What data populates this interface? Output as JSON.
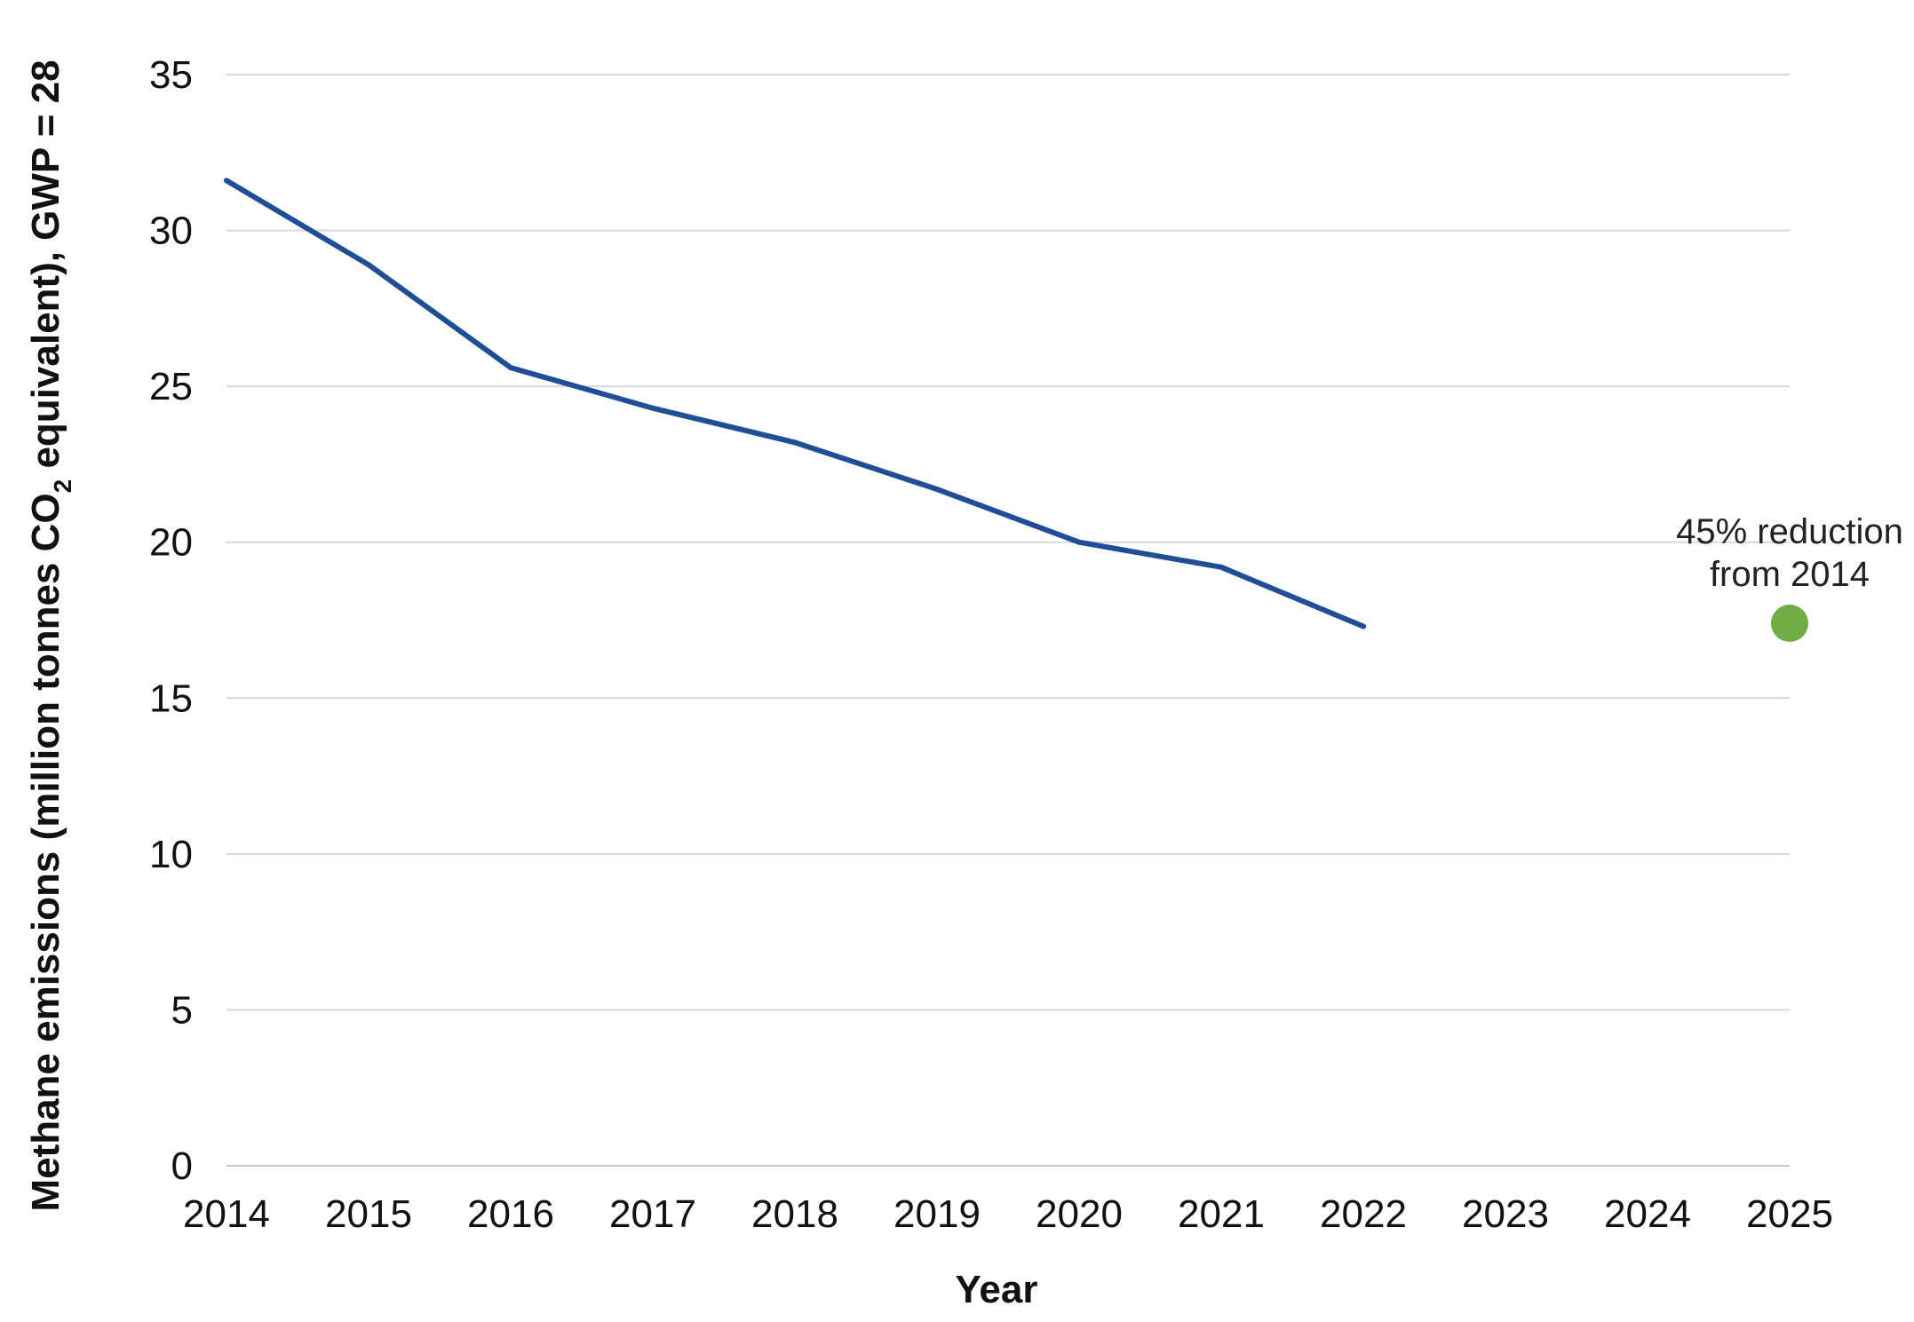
{
  "chart_data": {
    "type": "line",
    "title": "",
    "xlabel": "Year",
    "ylabel": {
      "prefix": "Methane emissions (million tonnes CO",
      "subscript": "2",
      "suffix": " equivalent), GWP = 28"
    },
    "x_ticks": [
      "2014",
      "2015",
      "2016",
      "2017",
      "2018",
      "2019",
      "2020",
      "2021",
      "2022",
      "2023",
      "2024",
      "2025"
    ],
    "y_ticks": [
      "0",
      "5",
      "10",
      "15",
      "20",
      "25",
      "30",
      "35"
    ],
    "xlim": [
      2014,
      2025
    ],
    "ylim": [
      0,
      35
    ],
    "grid": true,
    "series": [
      {
        "color": "#1f4e96",
        "x": [
          2014,
          2015,
          2016,
          2017,
          2018,
          2019,
          2020,
          2021,
          2022
        ],
        "values": [
          31.6,
          28.9,
          25.6,
          24.3,
          23.2,
          21.7,
          20.0,
          19.2,
          17.3
        ]
      }
    ],
    "target": {
      "x": 2025,
      "value": 17.4,
      "color": "#70ad47",
      "label_line1": "45% reduction",
      "label_line2": "from 2014"
    }
  }
}
